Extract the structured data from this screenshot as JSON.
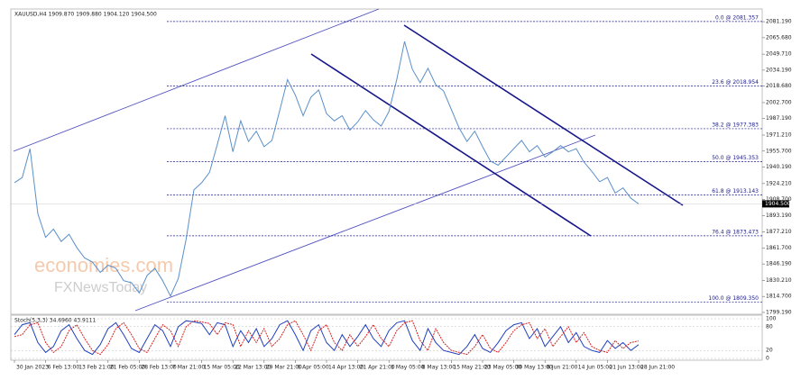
{
  "chart_data": {
    "type": "line",
    "title": "XAUUSD,H4  1909.870 1909.880 1904.120 1904.500",
    "categories": [
      "30 Jan 2023",
      null,
      null,
      null,
      "6 Feb 13:00",
      null,
      null,
      null,
      "13 Feb 21:00",
      null,
      null,
      null,
      "21 Feb 05:00",
      null,
      null,
      null,
      "28 Feb 13:00",
      null,
      null,
      null,
      "7 Mar 21:00",
      null,
      null,
      null,
      "15 Mar 05:00",
      null,
      null,
      null,
      "22 Mar 13:00",
      null,
      null,
      null,
      "29 Mar 21:00",
      null,
      null,
      null,
      "6 Apr 05:00",
      null,
      null,
      null,
      "14 Apr 13:00",
      null,
      null,
      null,
      "21 Apr 21:00",
      null,
      null,
      null,
      "1 May 05:00",
      null,
      null,
      null,
      "8 May 13:00",
      null,
      null,
      null,
      "15 May 21:00",
      null,
      null,
      null,
      "23 May 05:00",
      null,
      null,
      null,
      "30 May 13:00",
      null,
      null,
      null,
      "6 Jun 21:00",
      null,
      null,
      null,
      "14 Jun 05:00",
      null,
      null,
      null,
      "21 Jun 13:00",
      null,
      null,
      null,
      "28 Jun 21:00"
    ],
    "series": [
      {
        "color": "#5b8fc9",
        "values": [
          1925,
          1930,
          1958,
          1895,
          1872,
          1880,
          1868,
          1875,
          1862,
          1852,
          1848,
          1838,
          1845,
          1842,
          1830,
          1828,
          1818,
          1835,
          1842,
          1830,
          1815,
          1832,
          1870,
          1918,
          1925,
          1935,
          1962,
          1990,
          1955,
          1985,
          1965,
          1975,
          1960,
          1966,
          1995,
          2025,
          2010,
          1990,
          2008,
          2015,
          1992,
          1985,
          1990,
          1976,
          1984,
          1995,
          1986,
          1980,
          1994,
          2025,
          2062,
          2035,
          2022,
          2036,
          2020,
          2014,
          1996,
          1978,
          1965,
          1975,
          1960,
          1946,
          1942,
          1950,
          1958,
          1966,
          1955,
          1961,
          1950,
          1955,
          1961,
          1955,
          1958,
          1945,
          1936,
          1926,
          1930,
          1915,
          1920,
          1910,
          1904.5
        ]
      }
    ],
    "ylim": [
      1797.4,
      2093.5
    ],
    "yticks": [
      {
        "value": 2081.19,
        "label": "2081.190"
      },
      {
        "value": 2065.68,
        "label": "2065.680"
      },
      {
        "value": 2049.71,
        "label": "2049.710"
      },
      {
        "value": 2034.19,
        "label": "2034.190"
      },
      {
        "value": 2018.68,
        "label": "2018.680"
      },
      {
        "value": 2002.7,
        "label": "2002.700"
      },
      {
        "value": 1987.19,
        "label": "1987.190"
      },
      {
        "value": 1971.21,
        "label": "1971.210"
      },
      {
        "value": 1955.7,
        "label": "1955.700"
      },
      {
        "value": 1940.19,
        "label": "1940.190"
      },
      {
        "value": 1924.21,
        "label": "1924.210"
      },
      {
        "value": 1908.7,
        "label": "1908.700"
      },
      {
        "value": 1893.19,
        "label": "1893.190"
      },
      {
        "value": 1877.21,
        "label": "1877.210"
      },
      {
        "value": 1861.7,
        "label": "1861.700"
      },
      {
        "value": 1846.19,
        "label": "1846.190"
      },
      {
        "value": 1830.21,
        "label": "1830.210"
      },
      {
        "value": 1814.7,
        "label": "1814.700"
      },
      {
        "value": 1799.19,
        "label": "1799.190"
      }
    ],
    "levels": [
      {
        "value": 2081.357,
        "label": "0.0 @ 2081.357"
      },
      {
        "value": 2018.954,
        "label": "23.6 @ 2018.954"
      },
      {
        "value": 1977.383,
        "label": "38.2 @ 1977.383"
      },
      {
        "value": 1945.353,
        "label": "50.0 @ 1945.353"
      },
      {
        "value": 1913.143,
        "label": "61.8 @ 1913.143"
      },
      {
        "value": 1873.473,
        "label": "76.4 @ 1873.473"
      },
      {
        "value": 1809.35,
        "label": "100.0 @ 1809.350"
      }
    ],
    "level_color": "#1a1a8c",
    "current_price": {
      "value": 1904.5,
      "label": "1904.500"
    },
    "watermarks": [
      "economies.com",
      "FXNewsToday"
    ],
    "indicator": {
      "title": "Stoch(5,3,3) 34.6960 43.9111",
      "ylim": [
        0,
        100
      ],
      "yticks": [
        100,
        80,
        20,
        0
      ],
      "series": [
        {
          "color": "#1f3fbf",
          "values": [
            60,
            85,
            90,
            40,
            15,
            30,
            70,
            85,
            50,
            20,
            10,
            35,
            75,
            90,
            60,
            25,
            15,
            50,
            85,
            70,
            30,
            80,
            95,
            92,
            88,
            60,
            90,
            85,
            30,
            70,
            40,
            75,
            30,
            50,
            85,
            95,
            60,
            20,
            70,
            85,
            40,
            20,
            60,
            30,
            55,
            85,
            50,
            30,
            70,
            90,
            95,
            45,
            20,
            75,
            40,
            20,
            15,
            10,
            30,
            60,
            25,
            15,
            40,
            70,
            85,
            90,
            50,
            75,
            30,
            55,
            80,
            40,
            65,
            30,
            20,
            15,
            45,
            25,
            40,
            20,
            34.7
          ]
        },
        {
          "color": "#d62020",
          "values": [
            55,
            60,
            85,
            90,
            40,
            15,
            30,
            70,
            85,
            50,
            20,
            10,
            35,
            75,
            90,
            60,
            25,
            15,
            50,
            85,
            70,
            30,
            80,
            95,
            92,
            88,
            60,
            90,
            85,
            30,
            70,
            40,
            75,
            30,
            50,
            85,
            95,
            60,
            20,
            70,
            85,
            40,
            20,
            60,
            30,
            55,
            85,
            50,
            30,
            70,
            90,
            95,
            45,
            20,
            75,
            40,
            20,
            15,
            10,
            30,
            60,
            25,
            15,
            40,
            70,
            85,
            90,
            50,
            75,
            30,
            55,
            80,
            40,
            65,
            30,
            20,
            15,
            45,
            25,
            40,
            43.9
          ]
        }
      ]
    }
  }
}
